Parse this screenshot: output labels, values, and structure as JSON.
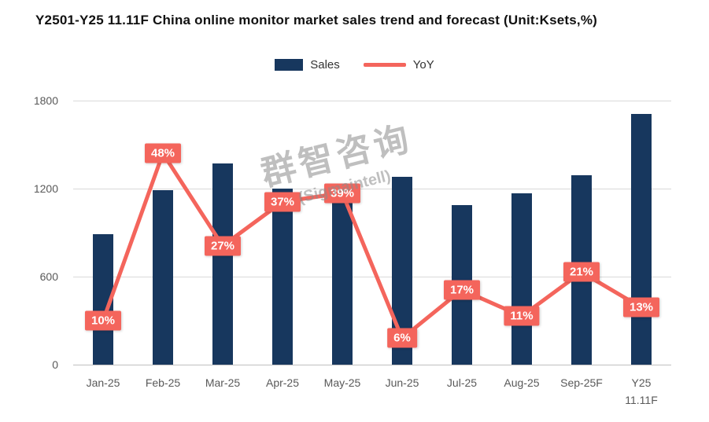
{
  "title": "Y2501-Y25 11.11F China online monitor market sales trend and forecast (Unit:Ksets,%)",
  "legend": {
    "sales": "Sales",
    "yoy": "YoY"
  },
  "watermark": {
    "line1": "群智咨询",
    "line2": "(Sigmaintell)"
  },
  "colors": {
    "bar": "#17375E",
    "line": "#F4655C",
    "grid": "#D9D9D9",
    "baseline": "#BFBFBF",
    "axis_text": "#595959",
    "label_text": "#FFFFFF"
  },
  "chart_data": {
    "type": "bar",
    "combo": "bar+line",
    "title": "Y2501-Y25 11.11F China online monitor market sales trend and forecast (Unit:Ksets,%)",
    "categories": [
      "Jan-25",
      "Feb-25",
      "Mar-25",
      "Apr-25",
      "May-25",
      "Jun-25",
      "Jul-25",
      "Aug-25",
      "Sep-25F",
      "Y25\n11.11F"
    ],
    "series": [
      {
        "name": "Sales",
        "type": "bar",
        "axis": "primary",
        "unit": "Ksets",
        "values": [
          890,
          1190,
          1370,
          1200,
          1220,
          1280,
          1090,
          1170,
          1290,
          1710
        ]
      },
      {
        "name": "YoY",
        "type": "line",
        "axis": "secondary",
        "unit": "%",
        "values": [
          10,
          48,
          27,
          37,
          39,
          6,
          17,
          11,
          21,
          13
        ],
        "labels": [
          "10%",
          "48%",
          "27%",
          "37%",
          "39%",
          "6%",
          "17%",
          "11%",
          "21%",
          "13%"
        ]
      }
    ],
    "y_axis": {
      "ticks": [
        0,
        600,
        1200,
        1800
      ],
      "min": 0,
      "max": 1800
    },
    "y2_axis": {
      "min": 0,
      "max": 60
    },
    "grid": true,
    "legend_position": "top"
  }
}
